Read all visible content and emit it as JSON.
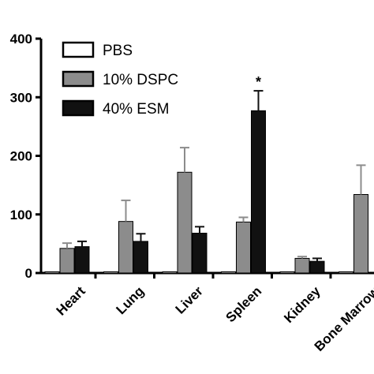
{
  "chart_data": {
    "type": "bar",
    "categories": [
      "Heart",
      "Lung",
      "Liver",
      "Spleen",
      "Kidney",
      "Bone Marrow"
    ],
    "series": [
      {
        "name": "PBS",
        "color": "#ffffff",
        "values": [
          2,
          2,
          2,
          2,
          2,
          2
        ],
        "errors": [
          0,
          0,
          0,
          0,
          0,
          0
        ]
      },
      {
        "name": "10% DSPC",
        "color": "#8c8c8c",
        "values": [
          42,
          88,
          172,
          87,
          25,
          134
        ],
        "errors": [
          9,
          36,
          42,
          8,
          3,
          50
        ]
      },
      {
        "name": "40% ESM",
        "color": "#111111",
        "values": [
          45,
          54,
          68,
          277,
          20,
          null
        ],
        "errors": [
          9,
          13,
          11,
          34,
          5,
          null
        ]
      }
    ],
    "yticks": [
      0,
      100,
      200,
      300,
      400
    ],
    "ylim": [
      0,
      400
    ],
    "legend_position": "top-left",
    "annotations": [
      {
        "text": "*",
        "category": "Spleen",
        "series": "40% ESM"
      }
    ]
  }
}
